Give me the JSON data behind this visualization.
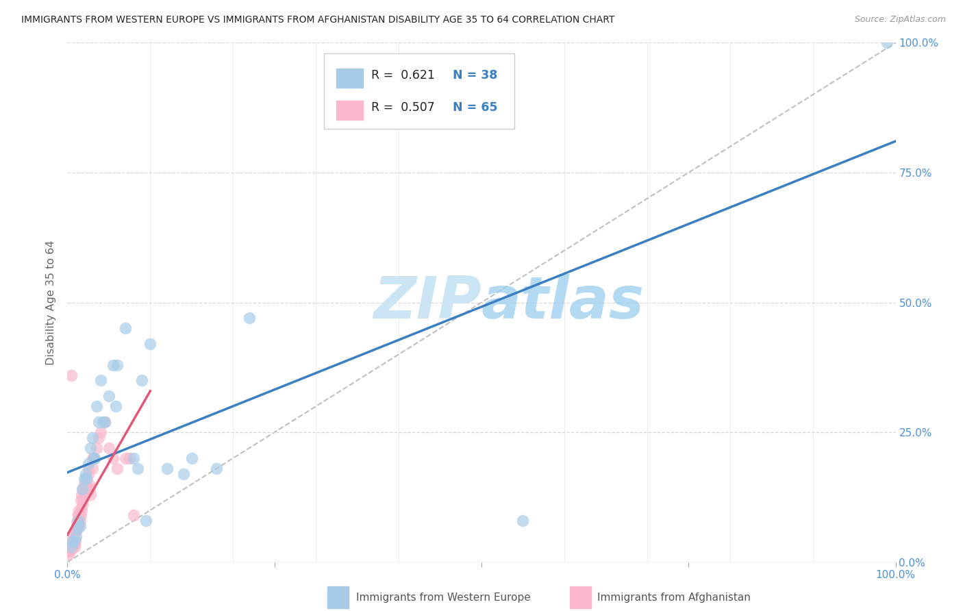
{
  "title": "IMMIGRANTS FROM WESTERN EUROPE VS IMMIGRANTS FROM AFGHANISTAN DISABILITY AGE 35 TO 64 CORRELATION CHART",
  "source": "Source: ZipAtlas.com",
  "ylabel": "Disability Age 35 to 64",
  "watermark": "ZIPAtlas",
  "blue_R": 0.621,
  "blue_N": 38,
  "pink_R": 0.507,
  "pink_N": 65,
  "blue_color": "#a8cce8",
  "pink_color": "#f9b8cb",
  "blue_line_color": "#3a7fc1",
  "pink_line_color": "#e05878",
  "diag_color": "#c0c0c0",
  "grid_color": "#d8d8d8",
  "axis_tick_color": "#4a90d9",
  "background_color": "#ffffff",
  "title_color": "#222222",
  "source_color": "#999999",
  "ylabel_color": "#666666",
  "watermark_color": "#cce5f5",
  "blue_x": [
    0.5,
    0.8,
    1.0,
    1.2,
    1.5,
    1.8,
    2.0,
    2.2,
    2.5,
    2.8,
    3.0,
    3.2,
    3.5,
    3.8,
    4.0,
    4.5,
    5.0,
    5.5,
    6.0,
    7.0,
    8.0,
    9.0,
    10.0,
    12.0,
    14.0,
    15.0,
    18.0,
    22.0,
    55.0,
    99.0,
    0.6,
    1.3,
    2.3,
    3.3,
    4.3,
    5.8,
    8.5,
    9.5
  ],
  "blue_y": [
    3.0,
    4.0,
    5.0,
    6.5,
    7.0,
    14.0,
    16.0,
    17.0,
    19.0,
    22.0,
    24.0,
    20.0,
    30.0,
    27.0,
    35.0,
    27.0,
    32.0,
    38.0,
    38.0,
    45.0,
    20.0,
    35.0,
    42.0,
    18.0,
    17.0,
    20.0,
    18.0,
    47.0,
    8.0,
    100.0,
    4.0,
    8.0,
    16.0,
    20.0,
    27.0,
    30.0,
    18.0,
    8.0
  ],
  "pink_x": [
    0.1,
    0.15,
    0.2,
    0.25,
    0.3,
    0.35,
    0.4,
    0.45,
    0.5,
    0.55,
    0.6,
    0.65,
    0.7,
    0.75,
    0.8,
    0.85,
    0.9,
    0.95,
    1.0,
    1.1,
    1.2,
    1.3,
    1.4,
    1.5,
    1.6,
    1.7,
    1.8,
    1.9,
    2.0,
    2.2,
    2.4,
    2.6,
    2.8,
    3.0,
    3.5,
    4.0,
    5.0,
    6.0,
    7.0,
    8.0,
    0.3,
    0.5,
    0.7,
    1.0,
    1.3,
    1.6,
    1.9,
    2.3,
    2.7,
    3.2,
    0.4,
    0.6,
    0.8,
    1.1,
    1.4,
    1.7,
    2.0,
    2.5,
    3.0,
    4.5,
    0.5,
    2.5,
    3.8,
    5.5,
    7.5
  ],
  "pink_y": [
    1.5,
    2.0,
    2.0,
    2.5,
    2.5,
    3.0,
    3.5,
    3.0,
    2.5,
    4.0,
    4.0,
    4.0,
    3.5,
    3.5,
    4.5,
    3.0,
    3.5,
    4.0,
    6.0,
    7.0,
    8.0,
    9.0,
    7.0,
    8.0,
    9.0,
    10.0,
    11.0,
    12.0,
    13.0,
    15.0,
    14.0,
    15.0,
    13.0,
    18.0,
    22.0,
    25.0,
    22.0,
    18.0,
    20.0,
    9.0,
    3.0,
    36.0,
    4.0,
    6.0,
    9.0,
    12.0,
    14.0,
    16.0,
    14.0,
    20.0,
    3.5,
    4.5,
    5.5,
    7.5,
    10.0,
    13.0,
    15.0,
    18.0,
    20.0,
    27.0,
    3.0,
    17.0,
    24.0,
    20.0,
    20.0
  ],
  "xticks": [
    0,
    25,
    50,
    75,
    100
  ],
  "yticks": [
    0,
    25,
    50,
    75,
    100
  ],
  "xtick_labels_bottom": [
    "0.0%",
    "",
    "",
    "",
    "100.0%"
  ],
  "ytick_labels_right": [
    "0.0%",
    "25.0%",
    "50.0%",
    "75.0%",
    "100.0%"
  ]
}
